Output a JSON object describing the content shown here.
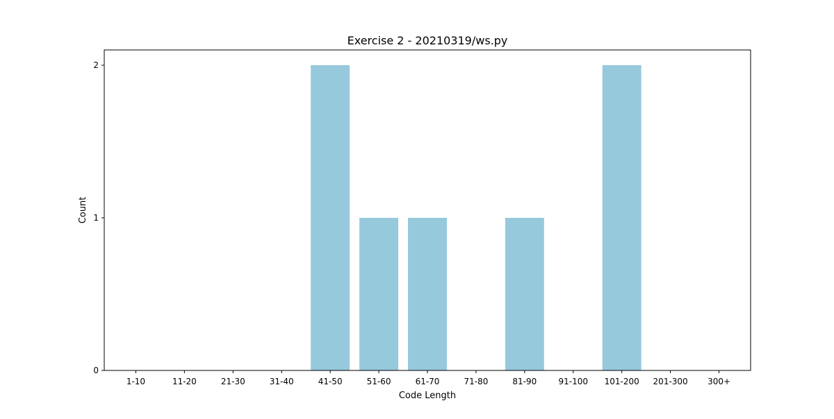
{
  "chart_data": {
    "type": "bar",
    "title": "Exercise 2 - 20210319/ws.py",
    "xlabel": "Code Length",
    "ylabel": "Count",
    "categories": [
      "1-10",
      "11-20",
      "21-30",
      "31-40",
      "41-50",
      "51-60",
      "61-70",
      "71-80",
      "81-90",
      "91-100",
      "101-200",
      "201-300",
      "300+"
    ],
    "values": [
      0,
      0,
      0,
      0,
      2,
      1,
      1,
      0,
      1,
      0,
      2,
      0,
      0
    ],
    "ylim": [
      0,
      2.1
    ],
    "yticks": [
      0,
      1,
      2
    ],
    "grid": false,
    "bar_color": "#96c9dc"
  }
}
